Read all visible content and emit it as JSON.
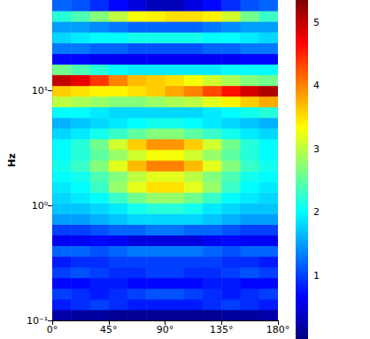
{
  "chart_data": {
    "type": "heatmap",
    "y_label": "Hz",
    "log": "y",
    "grid": false,
    "xlim": [
      0,
      180
    ],
    "xticks": [
      {
        "value": 0,
        "label": "0°"
      },
      {
        "value": 45,
        "label": "45°"
      },
      {
        "value": 90,
        "label": "90°"
      },
      {
        "value": 135,
        "label": "135°"
      },
      {
        "value": 180,
        "label": "180°"
      }
    ],
    "ylim": [
      0.1,
      61
    ],
    "yticks": [
      {
        "value": 0.1,
        "label": "10⁻¹"
      },
      {
        "value": 1,
        "label": "10⁰"
      },
      {
        "value": 10,
        "label": "10¹"
      }
    ],
    "x_bins": [
      0,
      15,
      30,
      45,
      60,
      75,
      90,
      105,
      120,
      135,
      150,
      165,
      180
    ],
    "y_bins": [
      0.1,
      0.124,
      0.153,
      0.19,
      0.235,
      0.291,
      0.361,
      0.447,
      0.553,
      0.685,
      0.848,
      1.05,
      1.3,
      1.61,
      1.99,
      2.47,
      3.06,
      3.79,
      4.69,
      5.8,
      7.19,
      8.9,
      11.0,
      13.7,
      16.9,
      20.9,
      25.9,
      32.1,
      39.8,
      49.2,
      61
    ],
    "values": [
      [
        0.2,
        0.15,
        0.15,
        0.1,
        0.1,
        0.1,
        0.1,
        0.1,
        0.1,
        0.15,
        0.15,
        0.2
      ],
      [
        0.8,
        0.9,
        1.0,
        0.9,
        0.8,
        0.8,
        0.8,
        0.8,
        0.9,
        1.0,
        0.9,
        0.8
      ],
      [
        1.0,
        0.9,
        0.8,
        0.9,
        1.0,
        1.1,
        1.1,
        1.0,
        0.9,
        0.8,
        0.9,
        1.0
      ],
      [
        0.7,
        0.7,
        0.8,
        0.8,
        0.7,
        0.7,
        0.7,
        0.7,
        0.8,
        0.8,
        0.7,
        0.7
      ],
      [
        1.0,
        1.1,
        1.0,
        0.9,
        0.9,
        1.0,
        1.0,
        0.9,
        0.9,
        1.0,
        1.1,
        1.0
      ],
      [
        0.8,
        0.9,
        0.9,
        1.0,
        1.0,
        1.0,
        1.0,
        1.0,
        1.0,
        0.9,
        0.9,
        0.8
      ],
      [
        1.2,
        1.2,
        1.1,
        1.2,
        1.3,
        1.3,
        1.3,
        1.3,
        1.2,
        1.1,
        1.2,
        1.2
      ],
      [
        0.6,
        0.6,
        0.7,
        0.6,
        0.5,
        0.5,
        0.5,
        0.5,
        0.6,
        0.7,
        0.6,
        0.6
      ],
      [
        1.0,
        1.0,
        1.1,
        1.2,
        1.2,
        1.3,
        1.3,
        1.2,
        1.2,
        1.1,
        1.0,
        1.0
      ],
      [
        1.5,
        1.5,
        1.6,
        1.7,
        1.8,
        1.8,
        1.8,
        1.8,
        1.7,
        1.6,
        1.5,
        1.5
      ],
      [
        1.7,
        1.7,
        1.8,
        1.9,
        2.1,
        2.2,
        2.2,
        2.1,
        1.9,
        1.8,
        1.7,
        1.7
      ],
      [
        1.8,
        1.9,
        2.0,
        2.3,
        2.6,
        2.8,
        2.8,
        2.6,
        2.3,
        2.0,
        1.9,
        1.8
      ],
      [
        1.9,
        2.0,
        2.3,
        2.8,
        3.2,
        3.5,
        3.5,
        3.2,
        2.8,
        2.3,
        2.0,
        1.9
      ],
      [
        2.0,
        2.1,
        2.4,
        2.7,
        3.0,
        3.2,
        3.2,
        3.0,
        2.7,
        2.4,
        2.1,
        2.0
      ],
      [
        2.1,
        2.3,
        2.7,
        3.2,
        3.7,
        4.0,
        4.0,
        3.7,
        3.2,
        2.7,
        2.3,
        2.1
      ],
      [
        2.0,
        2.2,
        2.5,
        2.8,
        3.1,
        3.3,
        3.3,
        3.1,
        2.8,
        2.5,
        2.2,
        2.0
      ],
      [
        2.0,
        2.2,
        2.6,
        3.1,
        3.6,
        3.9,
        3.9,
        3.6,
        3.1,
        2.6,
        2.2,
        2.0
      ],
      [
        1.8,
        1.9,
        2.1,
        2.3,
        2.5,
        2.7,
        2.7,
        2.5,
        2.3,
        2.1,
        1.9,
        1.8
      ],
      [
        1.6,
        1.7,
        1.8,
        1.9,
        2.0,
        2.1,
        2.1,
        2.0,
        1.9,
        1.8,
        1.7,
        1.6
      ],
      [
        2.0,
        2.0,
        1.9,
        1.8,
        1.8,
        1.8,
        1.8,
        1.8,
        1.9,
        2.0,
        2.1,
        2.2
      ],
      [
        3.0,
        2.9,
        2.8,
        2.7,
        2.7,
        2.8,
        2.9,
        3.0,
        3.2,
        3.4,
        3.6,
        3.8
      ],
      [
        3.6,
        3.5,
        3.4,
        3.4,
        3.5,
        3.6,
        3.8,
        4.0,
        4.3,
        4.6,
        4.9,
        5.1
      ],
      [
        5.0,
        4.8,
        4.4,
        4.0,
        3.7,
        3.6,
        3.5,
        3.3,
        3.1,
        2.9,
        2.7,
        2.6
      ],
      [
        2.6,
        2.4,
        2.2,
        2.0,
        1.9,
        1.9,
        1.9,
        1.9,
        1.9,
        2.0,
        2.0,
        2.0
      ],
      [
        0.7,
        0.7,
        0.6,
        0.6,
        0.6,
        0.6,
        0.6,
        0.6,
        0.6,
        0.6,
        0.7,
        0.7
      ],
      [
        1.3,
        1.3,
        1.2,
        1.2,
        1.1,
        1.1,
        1.1,
        1.1,
        1.2,
        1.2,
        1.3,
        1.3
      ],
      [
        1.8,
        1.9,
        2.0,
        2.0,
        2.1,
        2.1,
        2.1,
        2.1,
        2.0,
        2.0,
        1.9,
        1.8
      ],
      [
        1.5,
        1.5,
        1.4,
        1.3,
        1.2,
        1.2,
        1.2,
        1.2,
        1.3,
        1.4,
        1.5,
        1.5
      ],
      [
        2.2,
        2.4,
        2.7,
        3.0,
        3.3,
        3.4,
        3.5,
        3.5,
        3.4,
        3.1,
        2.6,
        2.3
      ],
      [
        1.2,
        1.1,
        0.9,
        0.7,
        0.5,
        0.3,
        0.3,
        0.5,
        0.7,
        0.9,
        1.1,
        1.2
      ]
    ],
    "colorbar": {
      "range": [
        0,
        5.35
      ],
      "ticks": [
        1,
        2,
        3,
        4,
        5
      ]
    }
  }
}
